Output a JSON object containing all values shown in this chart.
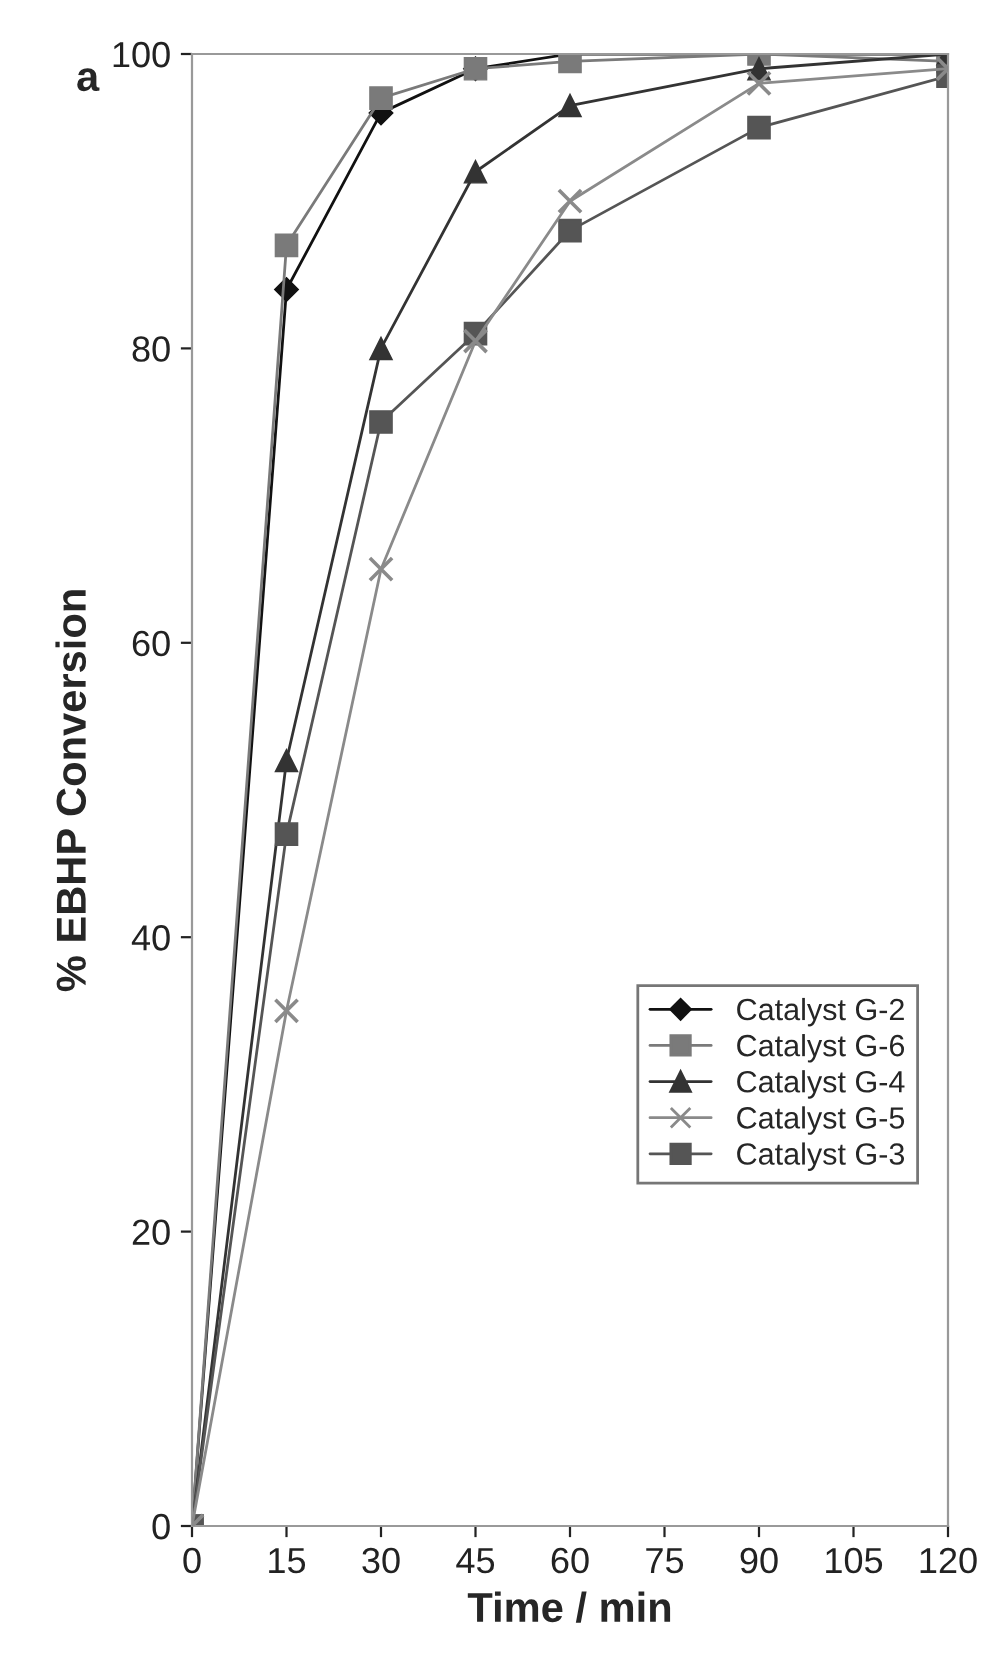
{
  "chart_data": {
    "type": "line",
    "xlabel": "Time / min",
    "ylabel": "% EBHP Conversion",
    "annotations": [
      "a"
    ],
    "x": [
      0,
      15,
      30,
      45,
      60,
      90,
      120
    ],
    "series": [
      {
        "name": "Catalyst G-2",
        "color": "#111111",
        "marker": "diamond",
        "values": [
          0,
          84,
          96,
          99,
          100,
          100,
          100
        ]
      },
      {
        "name": "Catalyst G-6",
        "color": "#7a7a7a",
        "marker": "square",
        "values": [
          0,
          87,
          97,
          99,
          99.5,
          100,
          99.5
        ]
      },
      {
        "name": "Catalyst G-4",
        "color": "#333333",
        "marker": "triangle",
        "values": [
          0,
          52,
          80,
          92,
          96.5,
          99,
          100
        ]
      },
      {
        "name": "Catalyst G-5",
        "color": "#8a8a8a",
        "marker": "cross",
        "values": [
          0,
          35,
          65,
          80.5,
          90,
          98,
          99
        ]
      },
      {
        "name": "Catalyst G-3",
        "color": "#555555",
        "marker": "square",
        "values": [
          0,
          47,
          75,
          81,
          88,
          95,
          98.5
        ]
      }
    ],
    "xlim": [
      0,
      120
    ],
    "xticks": [
      0,
      15,
      30,
      45,
      60,
      75,
      90,
      105,
      120
    ],
    "ylim": [
      0,
      100
    ],
    "yticks": [
      0,
      20,
      40,
      60,
      80,
      100
    ],
    "grid": false,
    "legend": "right",
    "line_style": "solid"
  }
}
